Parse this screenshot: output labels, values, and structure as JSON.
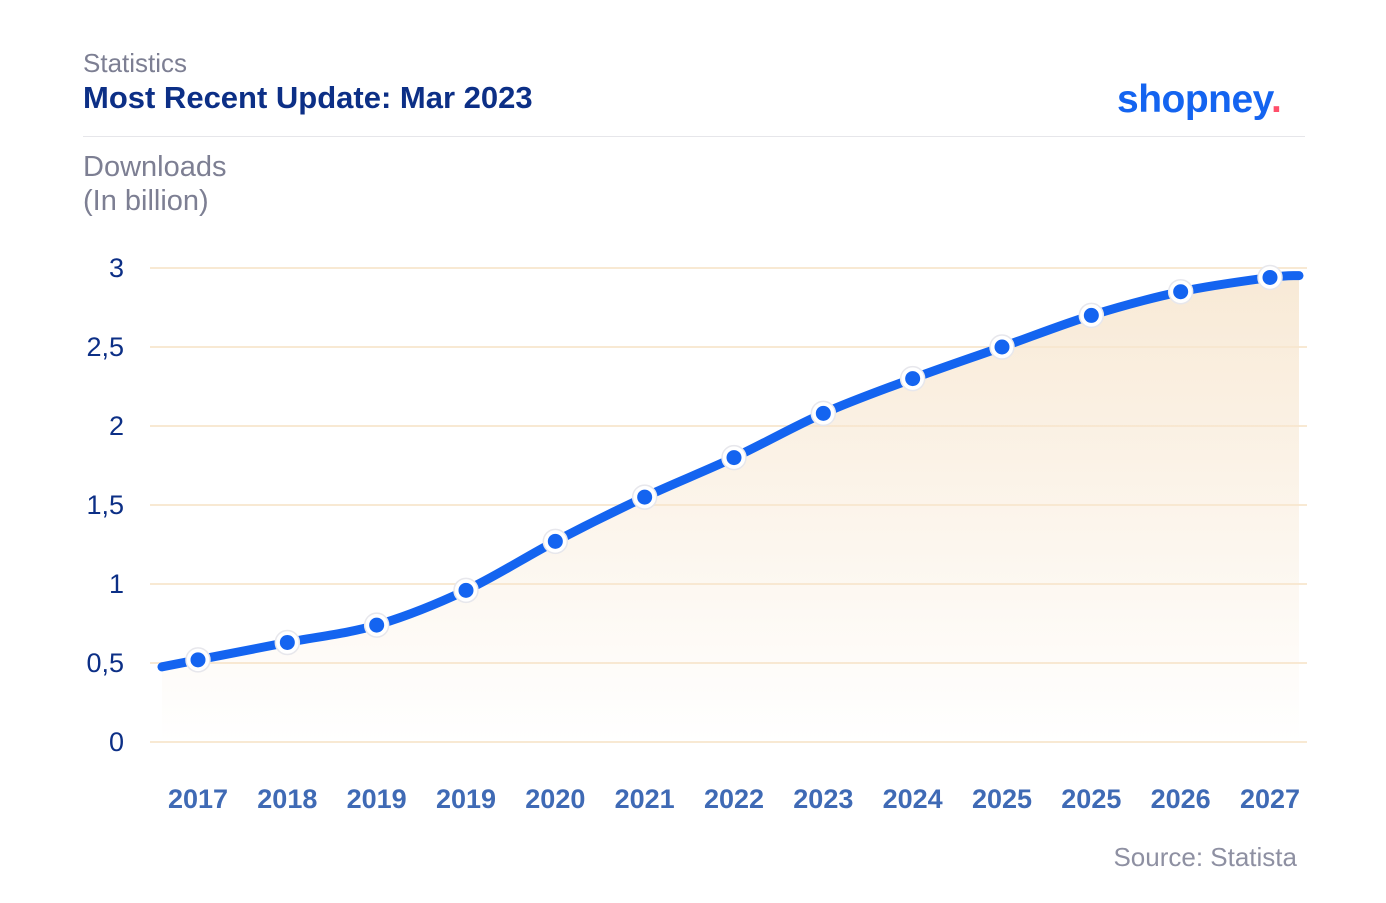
{
  "header": {
    "kicker": "Statistics",
    "title": "Most Recent Update: Mar 2023",
    "logo_text": "shopney",
    "logo_dot": "."
  },
  "footer": {
    "source": "Source: Statista"
  },
  "colors": {
    "line": "#1464f0",
    "grid": "#f8e9d3",
    "title": "#0c2f86",
    "logo_dot": "#ff4f6a",
    "fill": "#f7e6cf"
  },
  "chart_data": {
    "type": "line",
    "ylabel_lines": [
      "Downloads",
      "(In billion)"
    ],
    "xlabel": "",
    "ylim": [
      0,
      3
    ],
    "yticks": [
      0,
      0.5,
      1,
      1.5,
      2,
      2.5,
      3
    ],
    "ytick_labels": [
      "0",
      "0,5",
      "1",
      "1,5",
      "2",
      "2,5",
      "3"
    ],
    "grid": true,
    "categories": [
      "2017",
      "2018",
      "2019",
      "2019",
      "2020",
      "2021",
      "2022",
      "2023",
      "2024",
      "2025",
      "2025",
      "2026",
      "2027"
    ],
    "series": [
      {
        "values": [
          0.52,
          0.63,
          0.74,
          0.96,
          1.27,
          1.55,
          1.8,
          2.08,
          2.3,
          2.5,
          2.7,
          2.85,
          2.94
        ]
      }
    ]
  }
}
